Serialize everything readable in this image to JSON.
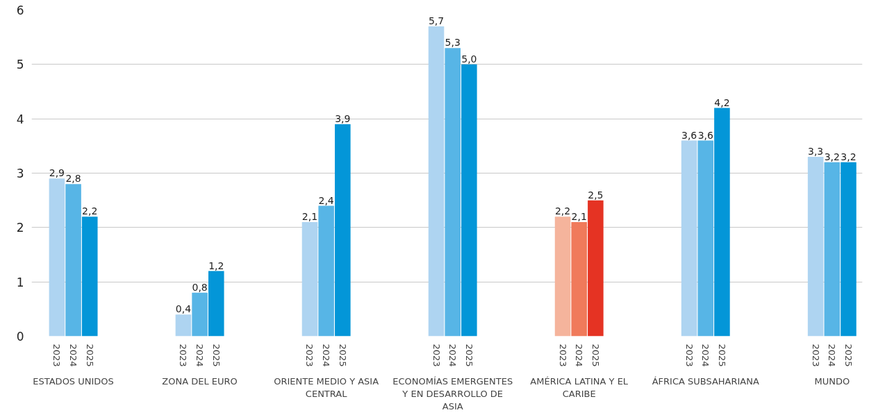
{
  "chart_data": {
    "type": "bar",
    "categories": [
      "ESTADOS UNIDOS",
      "ZONA DEL EURO",
      "ORIENTE MEDIO Y ASIA CENTRAL",
      "ECONOMÍAS EMERGENTES Y EN DESARROLLO DE ASIA",
      "AMÉRICA LATINA Y EL CARIBE",
      "ÁFRICA SUBSAHARIANA",
      "MUNDO"
    ],
    "series": [
      {
        "name": "2023",
        "colors": [
          "#aed4f1",
          "#aed4f1",
          "#aed4f1",
          "#aed4f1",
          "#f5b49c",
          "#aed4f1",
          "#aed4f1"
        ],
        "values": [
          2.9,
          0.4,
          2.1,
          5.7,
          2.2,
          3.6,
          3.3
        ],
        "value_labels": [
          "2,9",
          "0,4",
          "2,1",
          "5,7",
          "2,2",
          "3,6",
          "3,3"
        ]
      },
      {
        "name": "2024",
        "colors": [
          "#57b5e6",
          "#57b5e6",
          "#57b5e6",
          "#57b5e6",
          "#f07a5b",
          "#57b5e6",
          "#57b5e6"
        ],
        "values": [
          2.8,
          0.8,
          2.4,
          5.3,
          2.1,
          3.6,
          3.2
        ],
        "value_labels": [
          "2,8",
          "0,8",
          "2,4",
          "5,3",
          "2,1",
          "3,6",
          "3,2"
        ]
      },
      {
        "name": "2025",
        "colors": [
          "#0396d8",
          "#0396d8",
          "#0396d8",
          "#0396d8",
          "#e53323",
          "#0396d8",
          "#0396d8"
        ],
        "values": [
          2.2,
          1.2,
          3.9,
          5.0,
          2.5,
          4.2,
          3.2
        ],
        "value_labels": [
          "2,2",
          "1,2",
          "3,9",
          "5,0",
          "2,5",
          "4,2",
          "3,2"
        ]
      }
    ],
    "ylim": [
      0,
      6
    ],
    "yticks": [
      0,
      1,
      2,
      3,
      4,
      5,
      6
    ],
    "grid": "y"
  }
}
